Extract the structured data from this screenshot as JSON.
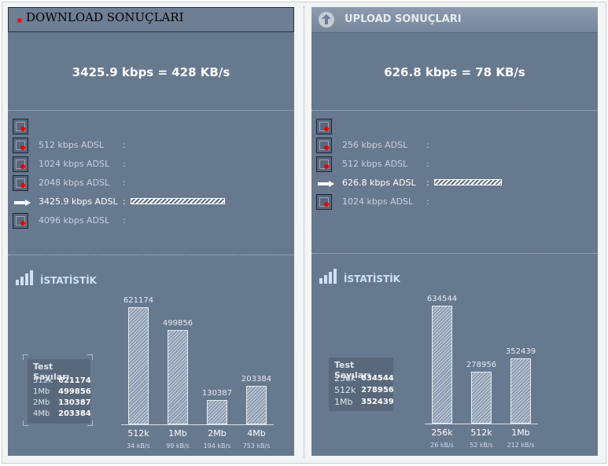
{
  "download": {
    "header_title": "DOWNLOAD SONUÇLARI",
    "speed_text": "3425.9 kbps = 428 KB/s",
    "rows": [
      {
        "label": "",
        "current": false
      },
      {
        "label": "512 kbps ADSL",
        "current": false
      },
      {
        "label": "1024 kbps ADSL",
        "current": false
      },
      {
        "label": "2048 kbps ADSL",
        "current": false
      },
      {
        "label": "3425.9 kbps ADSL",
        "current": true
      },
      {
        "label": "4096 kbps ADSL",
        "current": false
      }
    ],
    "colon": ":",
    "stats_title": "İSTATİSTİK",
    "legend": {
      "title": "Test Sayıları",
      "items": [
        {
          "key": "512k",
          "value": "621174"
        },
        {
          "key": "1Mb",
          "value": "499856"
        },
        {
          "key": "2Mb",
          "value": "130387"
        },
        {
          "key": "4Mb",
          "value": "203384"
        }
      ]
    },
    "chart_data": {
      "type": "bar",
      "categories": [
        "512k",
        "1Mb",
        "2Mb",
        "4Mb"
      ],
      "values": [
        621174,
        499856,
        130387,
        203384
      ],
      "value_labels": [
        "621174",
        "499856",
        "130387",
        "203384"
      ],
      "sublabels": [
        "34 kB/s",
        "99 kB/s",
        "194 kB/s",
        "753 kB/s"
      ]
    }
  },
  "upload": {
    "header_title": "UPLOAD SONUÇLARI",
    "speed_text": "626.8 kbps = 78 KB/s",
    "rows": [
      {
        "label": "",
        "current": false
      },
      {
        "label": "256 kbps ADSL",
        "current": false
      },
      {
        "label": "512 kbps ADSL",
        "current": false
      },
      {
        "label": "626.8 kbps ADSL",
        "current": true
      },
      {
        "label": "1024 kbps ADSL",
        "current": false
      }
    ],
    "colon": ":",
    "stats_title": "İSTATİSTİK",
    "legend": {
      "title": "Test Sayıları",
      "items": [
        {
          "key": "256k",
          "value": "634544"
        },
        {
          "key": "512k",
          "value": "278956"
        },
        {
          "key": "1Mb",
          "value": "352439"
        }
      ]
    },
    "chart_data": {
      "type": "bar",
      "categories": [
        "256k",
        "512k",
        "1Mb"
      ],
      "values": [
        634544,
        278956,
        352439
      ],
      "value_labels": [
        "634544",
        "278956",
        "352439"
      ],
      "sublabels": [
        "26 kB/s",
        "52 kB/s",
        "212 kB/s"
      ]
    }
  }
}
